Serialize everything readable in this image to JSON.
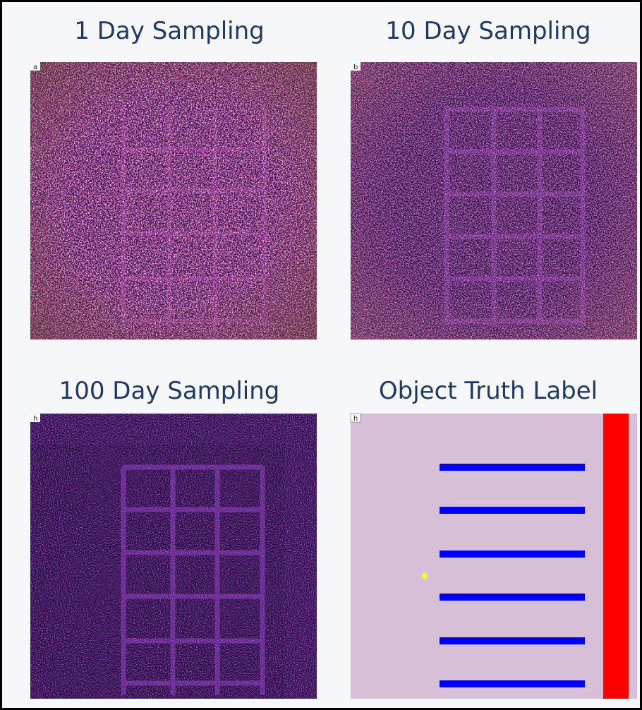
{
  "panels": [
    {
      "title": "1 Day Sampling",
      "tag": "a"
    },
    {
      "title": "10 Day Sampling",
      "tag": "b"
    },
    {
      "title": "100 Day Sampling",
      "tag": "h"
    },
    {
      "title": "Object Truth Label",
      "tag": "h"
    }
  ]
}
